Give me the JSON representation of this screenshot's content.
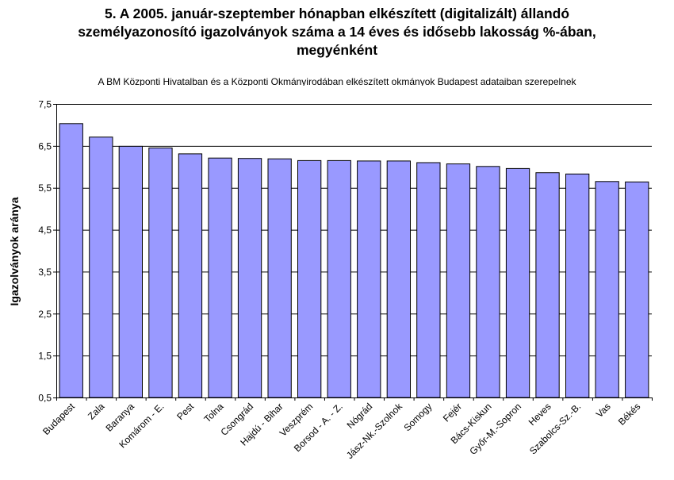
{
  "chart_data": {
    "type": "bar",
    "title_lines": [
      "5. A 2005. január-szeptember hónapban elkészített (digitalizált) állandó",
      "személyazonosító igazolványok száma a 14 éves és idősebb lakosság %-ában,",
      "megyénként"
    ],
    "subtitle": "A BM Központi Hivatalban és a Központi Okmányirodában elkészített okmányok Budapest adataiban szerepelnek",
    "xlabel": "",
    "ylabel": "Igazolványok aránya",
    "ylim": [
      0.5,
      7.5
    ],
    "yticks": [
      0.5,
      1.5,
      2.5,
      3.5,
      4.5,
      5.5,
      6.5,
      7.5
    ],
    "ytick_labels": [
      "0,5",
      "1,5",
      "2,5",
      "3,5",
      "4,5",
      "5,5",
      "6,5",
      "7,5"
    ],
    "categories": [
      "Budapest",
      "Zala",
      "Baranya",
      "Komárom - E.",
      "Pest",
      "Tolna",
      "Csongrád",
      "Hajdú - Bihar",
      "Veszprém",
      "Borsod - A. - Z.",
      "Nógrád",
      "Jász-Nk.-Szolnok",
      "Somogy",
      "Fejér",
      "Bács-Kiskun",
      "Győr-M.-Sopron",
      "Heves",
      "Szabolcs-Sz.-B.",
      "Vas",
      "Békés"
    ],
    "values": [
      7.03,
      6.71,
      6.49,
      6.45,
      6.31,
      6.21,
      6.2,
      6.19,
      6.15,
      6.15,
      6.14,
      6.14,
      6.1,
      6.07,
      6.01,
      5.96,
      5.86,
      5.83,
      5.65,
      5.64
    ],
    "grid": true,
    "colors": {
      "bar_fill": "#9999ff",
      "bar_stroke": "#000000",
      "gridline": "#000000"
    }
  }
}
